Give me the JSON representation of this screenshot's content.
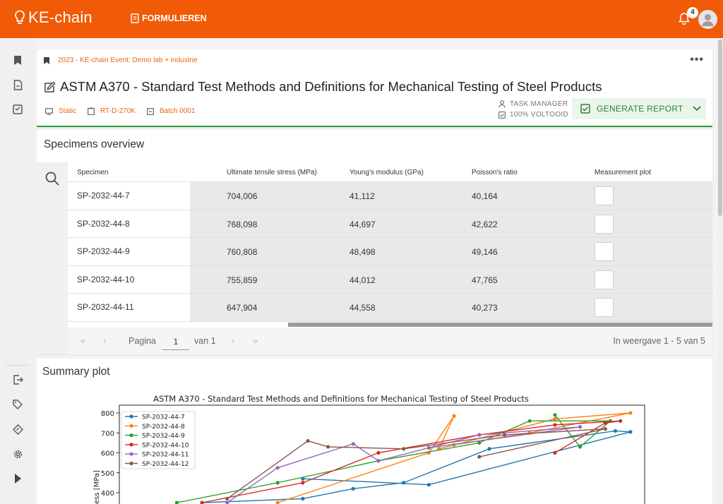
{
  "app": {
    "name": "KE-chain",
    "nav_label": "FORMULIEREN",
    "notification_count": "4",
    "brand_color": "#f15a06"
  },
  "header": {
    "breadcrumb": "2023 - KE-chain Event: Demo lab + industrie",
    "title": "ASTM A370 - Standard Test Methods and Definitions for Mechanical Testing of Steel Products",
    "meta": {
      "type": "Static",
      "reference": "RT-D-270K",
      "batch": "Batch 0001"
    },
    "role": "TASK MANAGER",
    "progress": "100% VOLTOOID",
    "generate_button": "GENERATE REPORT"
  },
  "specimens": {
    "title": "Specimens overview",
    "columns": [
      "Specimen",
      "Ultimate tensile stress (MPa)",
      "Young's modulus (GPa)",
      "Poisson's ratio",
      "Measurement plot"
    ],
    "rows": [
      [
        "SP-2032-44-7",
        "704,006",
        "41,112",
        "40,164"
      ],
      [
        "SP-2032-44-8",
        "768,098",
        "44,697",
        "42,622"
      ],
      [
        "SP-2032-44-9",
        "760,808",
        "48,498",
        "49,146"
      ],
      [
        "SP-2032-44-10",
        "755,859",
        "44,012",
        "47,765"
      ],
      [
        "SP-2032-44-11",
        "647,904",
        "44,558",
        "40,273"
      ]
    ],
    "pager": {
      "page_label": "Pagina",
      "page": "1",
      "of_label": "van 1",
      "summary": "In weergave 1 - 5 van 5"
    }
  },
  "summary": {
    "title": "Summary plot"
  },
  "chart_data": {
    "type": "line",
    "title": "ASTM A370 - Standard Test Methods and Definitions for Mechanical Testing of Steel Products",
    "ylabel": "ess [MPa]",
    "ylim_visible": [
      340,
      820
    ],
    "yticks": [
      400,
      500,
      600,
      700,
      800
    ],
    "legend_position": "top-left",
    "series": [
      {
        "name": "SP-2032-44-7",
        "color": "#1f77b4",
        "values": [
          [
            0.15,
            350
          ],
          [
            0.35,
            370
          ],
          [
            0.45,
            420
          ],
          [
            0.55,
            450
          ],
          [
            0.72,
            620
          ],
          [
            0.97,
            710
          ],
          [
            1.0,
            705
          ],
          [
            0.6,
            440
          ],
          [
            0.35,
            470
          ]
        ]
      },
      {
        "name": "SP-2032-44-8",
        "color": "#ff7f0e",
        "values": [
          [
            0.3,
            350
          ],
          [
            0.6,
            600
          ],
          [
            0.65,
            785
          ],
          [
            0.62,
            620
          ],
          [
            0.85,
            770
          ],
          [
            1.0,
            800
          ],
          [
            0.8,
            700
          ],
          [
            0.65,
            640
          ]
        ]
      },
      {
        "name": "SP-2032-44-9",
        "color": "#2ca02c",
        "values": [
          [
            0.1,
            350
          ],
          [
            0.3,
            450
          ],
          [
            0.5,
            560
          ],
          [
            0.7,
            650
          ],
          [
            0.8,
            760
          ],
          [
            0.96,
            760
          ],
          [
            0.9,
            630
          ],
          [
            0.85,
            790
          ]
        ]
      },
      {
        "name": "SP-2032-44-10",
        "color": "#d62728",
        "values": [
          [
            0.15,
            350
          ],
          [
            0.35,
            450
          ],
          [
            0.5,
            600
          ],
          [
            0.7,
            690
          ],
          [
            0.85,
            740
          ],
          [
            0.98,
            760
          ],
          [
            0.95,
            750
          ],
          [
            0.85,
            600
          ]
        ]
      },
      {
        "name": "SP-2032-44-11",
        "color": "#9467bd",
        "values": [
          [
            0.2,
            350
          ],
          [
            0.3,
            525
          ],
          [
            0.45,
            645
          ],
          [
            0.5,
            560
          ],
          [
            0.7,
            690
          ],
          [
            0.9,
            730
          ],
          [
            0.6,
            625
          ]
        ]
      },
      {
        "name": "SP-2032-44-12",
        "color": "#8c564b",
        "values": [
          [
            0.2,
            370
          ],
          [
            0.36,
            660
          ],
          [
            0.4,
            630
          ],
          [
            0.55,
            620
          ],
          [
            0.75,
            690
          ],
          [
            0.95,
            720
          ],
          [
            0.7,
            580
          ]
        ]
      }
    ]
  }
}
